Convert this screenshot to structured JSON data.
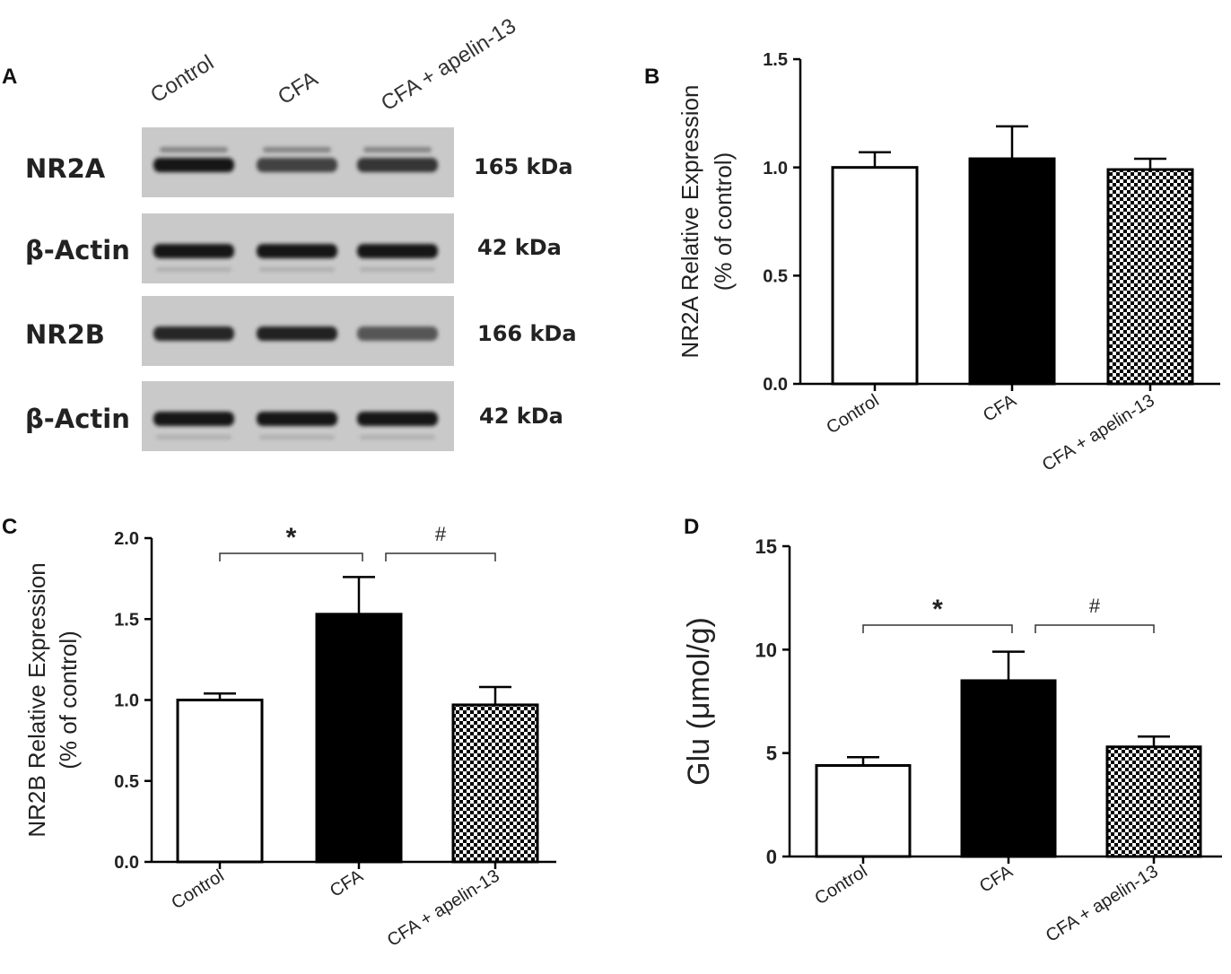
{
  "panel_a": {
    "letter": "A",
    "lane_labels": [
      "Control",
      "CFA",
      "CFA + apelin-13"
    ],
    "blots": [
      {
        "label": "NR2A",
        "kda": "165 kDa"
      },
      {
        "label": "β-Actin",
        "kda": "42 kDa"
      },
      {
        "label": "NR2B",
        "kda": "166 kDa"
      },
      {
        "label": "β-Actin",
        "kda": "42 kDa"
      }
    ],
    "band_intensity": [
      [
        0.95,
        0.7,
        0.78
      ],
      [
        0.95,
        0.92,
        0.95
      ],
      [
        0.85,
        0.88,
        0.6
      ],
      [
        0.95,
        0.92,
        0.95
      ]
    ]
  },
  "chart_data": [
    {
      "id": "B",
      "letter": "B",
      "type": "bar",
      "categories": [
        "Control",
        "CFA",
        "CFA + apelin-13"
      ],
      "values": [
        1.0,
        1.04,
        0.99
      ],
      "errors": [
        0.07,
        0.15,
        0.05
      ],
      "fills": [
        "white",
        "black",
        "checker"
      ],
      "ylabel": "NR2A Relative Expression",
      "ylabel2": "(% of control)",
      "ylim": [
        0,
        1.5
      ],
      "yticks": [
        "0.0",
        "0.5",
        "1.0",
        "1.5"
      ],
      "ytick_values": [
        0,
        0.5,
        1.0,
        1.5
      ],
      "significance": []
    },
    {
      "id": "C",
      "letter": "C",
      "type": "bar",
      "categories": [
        "Control",
        "CFA",
        "CFA + apelin-13"
      ],
      "values": [
        1.0,
        1.53,
        0.97
      ],
      "errors": [
        0.04,
        0.23,
        0.11
      ],
      "fills": [
        "white",
        "black",
        "checker"
      ],
      "ylabel": "NR2B Relative Expression",
      "ylabel2": "(% of control)",
      "ylim": [
        0,
        2.0
      ],
      "yticks": [
        "0.0",
        "0.5",
        "1.0",
        "1.5",
        "2.0"
      ],
      "ytick_values": [
        0,
        0.5,
        1.0,
        1.5,
        2.0
      ],
      "significance": [
        {
          "from": 0,
          "to": 1,
          "symbol": "*"
        },
        {
          "from": 1,
          "to": 2,
          "symbol": "#"
        }
      ]
    },
    {
      "id": "D",
      "letter": "D",
      "type": "bar",
      "categories": [
        "Control",
        "CFA",
        "CFA + apelin-13"
      ],
      "values": [
        4.4,
        8.5,
        5.3
      ],
      "errors": [
        0.4,
        1.4,
        0.5
      ],
      "fills": [
        "white",
        "black",
        "checker"
      ],
      "ylabel": "Glu (μmol/g)",
      "ylabel2": "",
      "ylim": [
        0,
        15
      ],
      "yticks": [
        "0",
        "5",
        "10",
        "15"
      ],
      "ytick_values": [
        0,
        5,
        10,
        15
      ],
      "significance": [
        {
          "from": 0,
          "to": 1,
          "symbol": "*"
        },
        {
          "from": 1,
          "to": 2,
          "symbol": "#"
        }
      ]
    }
  ]
}
